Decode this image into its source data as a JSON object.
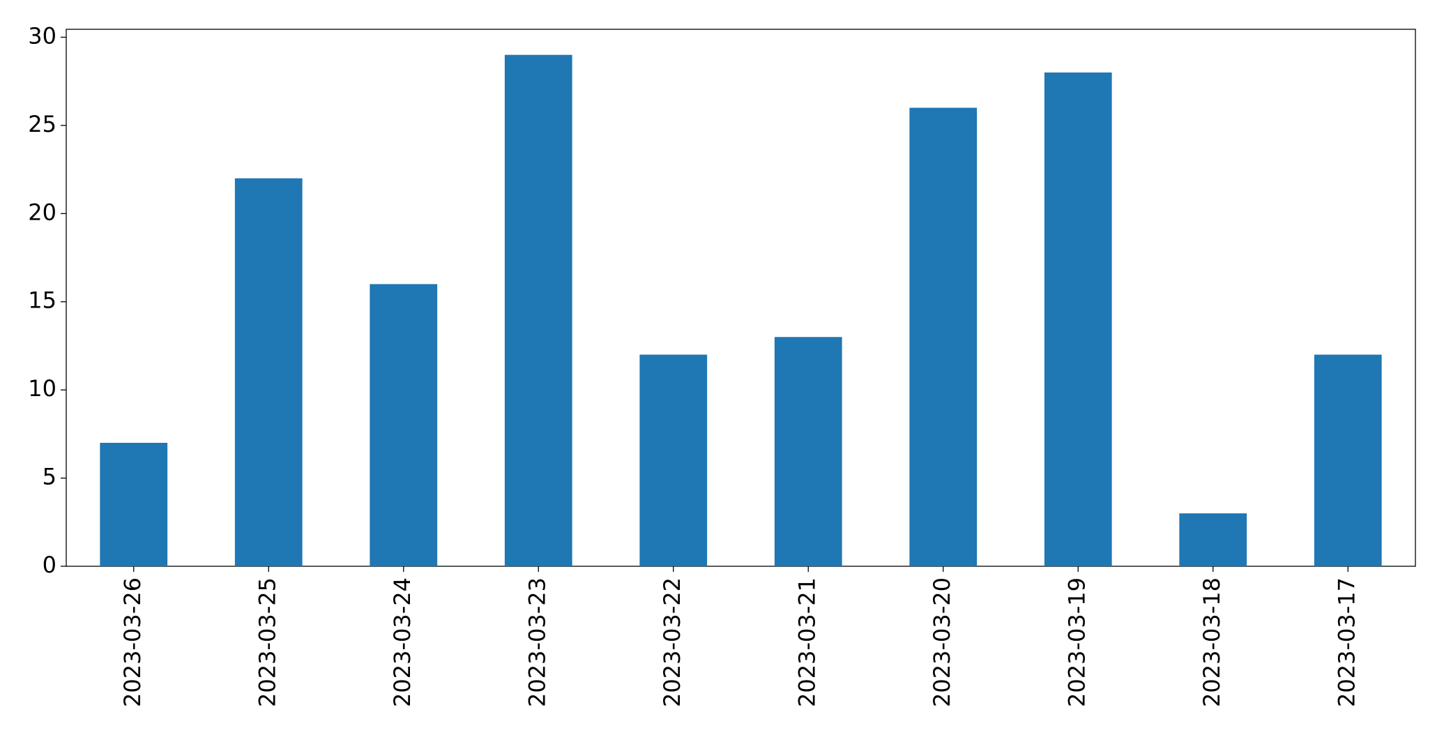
{
  "chart_data": {
    "type": "bar",
    "categories": [
      "2023-03-26",
      "2023-03-25",
      "2023-03-24",
      "2023-03-23",
      "2023-03-22",
      "2023-03-21",
      "2023-03-20",
      "2023-03-19",
      "2023-03-18",
      "2023-03-17"
    ],
    "values": [
      7,
      22,
      16,
      29,
      12,
      13,
      26,
      28,
      3,
      12
    ],
    "color": "#1f77b4",
    "ylim": [
      0,
      30.45
    ],
    "yticks": [
      0,
      5,
      10,
      15,
      20,
      25,
      30
    ],
    "grid": false
  }
}
